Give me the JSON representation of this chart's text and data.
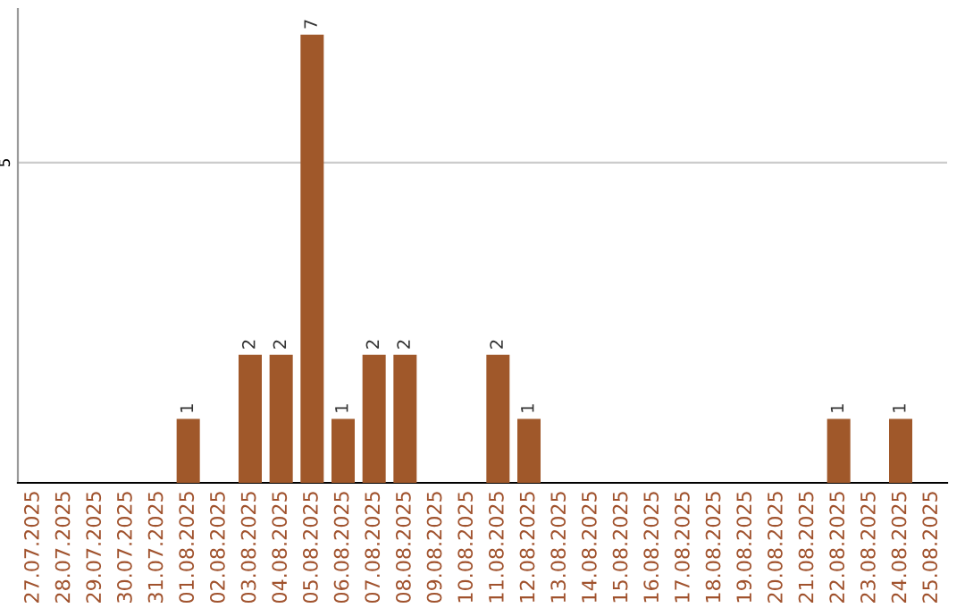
{
  "chart_data": {
    "type": "bar",
    "categories": [
      "27.07.2025",
      "28.07.2025",
      "29.07.2025",
      "30.07.2025",
      "31.07.2025",
      "01.08.2025",
      "02.08.2025",
      "03.08.2025",
      "04.08.2025",
      "05.08.2025",
      "06.08.2025",
      "07.08.2025",
      "08.08.2025",
      "09.08.2025",
      "10.08.2025",
      "11.08.2025",
      "12.08.2025",
      "13.08.2025",
      "14.08.2025",
      "15.08.2025",
      "16.08.2025",
      "17.08.2025",
      "18.08.2025",
      "19.08.2025",
      "20.08.2025",
      "21.08.2025",
      "22.08.2025",
      "23.08.2025",
      "24.08.2025",
      "25.08.2025"
    ],
    "values": [
      0,
      0,
      0,
      0,
      0,
      1,
      0,
      2,
      2,
      7,
      1,
      2,
      2,
      0,
      0,
      2,
      1,
      0,
      0,
      0,
      0,
      0,
      0,
      0,
      0,
      0,
      1,
      0,
      1,
      0
    ],
    "value_labels": [
      null,
      null,
      null,
      null,
      null,
      "1",
      null,
      "2",
      "2",
      "7",
      "1",
      "2",
      "2",
      null,
      null,
      "2",
      "1",
      null,
      null,
      null,
      null,
      null,
      null,
      null,
      null,
      null,
      "1",
      null,
      "1",
      null
    ],
    "color": "#a0582a",
    "ylim": [
      0,
      7.4
    ],
    "yticks": [
      5
    ],
    "grid": "y"
  }
}
